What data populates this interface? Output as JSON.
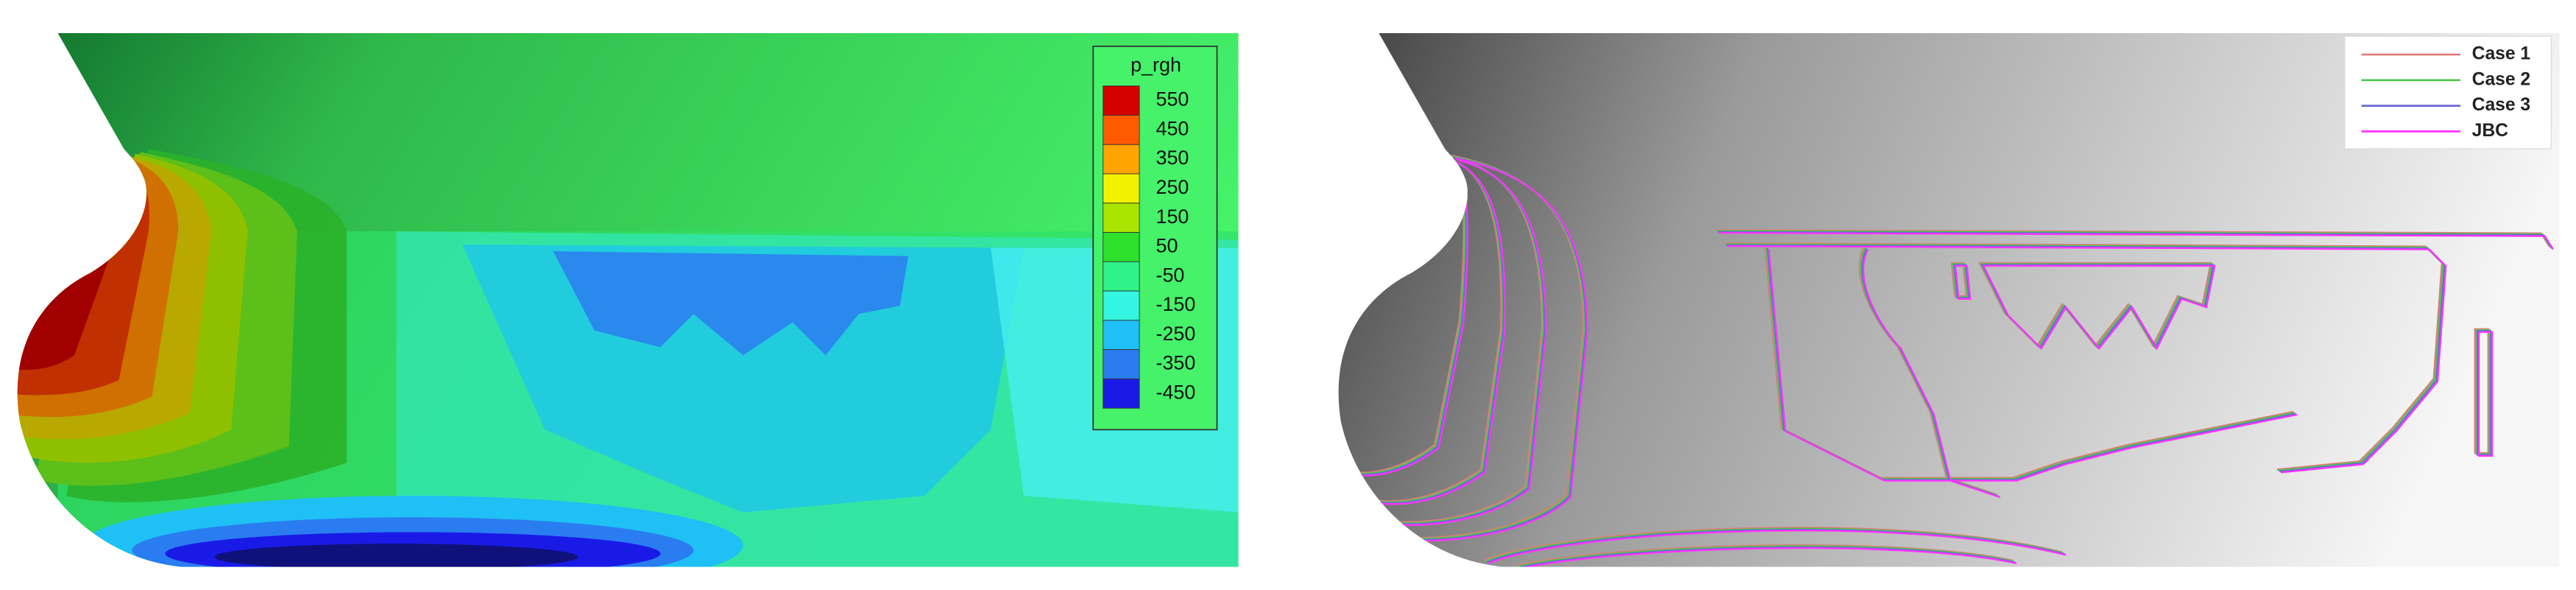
{
  "left_panel": {
    "colorbar": {
      "title": "p_rgh",
      "levels": [
        {
          "label": 550,
          "color": "#d40000"
        },
        {
          "label": 450,
          "color": "#ff5a00"
        },
        {
          "label": 350,
          "color": "#ffa400"
        },
        {
          "label": 250,
          "color": "#f2f200"
        },
        {
          "label": 150,
          "color": "#a8e600"
        },
        {
          "label": 50,
          "color": "#2de12d"
        },
        {
          "label": -50,
          "color": "#2ef28a"
        },
        {
          "label": -150,
          "color": "#33f5e0"
        },
        {
          "label": -250,
          "color": "#1ec0f5"
        },
        {
          "label": -350,
          "color": "#2a7df0"
        },
        {
          "label": -450,
          "color": "#1a1ae6"
        }
      ]
    }
  },
  "right_panel": {
    "legend": [
      {
        "name": "Case 1",
        "color": "#e07a7a"
      },
      {
        "name": "Case 2",
        "color": "#4cc84c"
      },
      {
        "name": "Case 3",
        "color": "#6a6ad8"
      },
      {
        "name": "JBC",
        "color": "#ff33ff"
      }
    ]
  }
}
